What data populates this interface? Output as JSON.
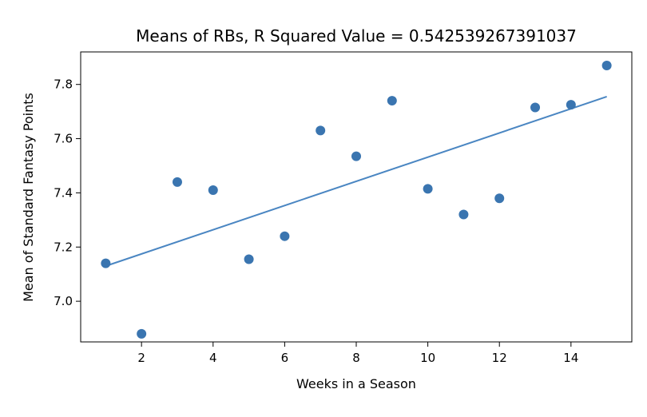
{
  "chart_data": {
    "type": "scatter",
    "title": "Means of RBs, R Squared Value = 0.542539267391037",
    "xlabel": "Weeks in a Season",
    "ylabel": "Mean of Standard Fantasy Points",
    "xlim": [
      0.3,
      15.7
    ],
    "ylim": [
      6.85,
      7.92
    ],
    "xticks": [
      2,
      4,
      6,
      8,
      10,
      12,
      14
    ],
    "yticks": [
      7.0,
      7.2,
      7.4,
      7.6,
      7.8
    ],
    "ytick_labels": [
      "7.0",
      "7.2",
      "7.4",
      "7.6",
      "7.8"
    ],
    "grid": false,
    "colors": {
      "points": "#3a75b0",
      "fit_line": "#4a86c2"
    },
    "series": [
      {
        "kind": "scatter",
        "x": [
          1,
          2,
          3,
          4,
          5,
          6,
          7,
          8,
          9,
          10,
          11,
          12,
          13,
          14,
          15
        ],
        "y": [
          7.14,
          6.88,
          7.44,
          7.41,
          7.155,
          7.24,
          7.63,
          7.535,
          7.74,
          7.415,
          7.32,
          7.38,
          7.715,
          7.725,
          7.87
        ]
      },
      {
        "kind": "line",
        "x": [
          1,
          15
        ],
        "y": [
          7.13,
          7.755
        ]
      }
    ]
  }
}
